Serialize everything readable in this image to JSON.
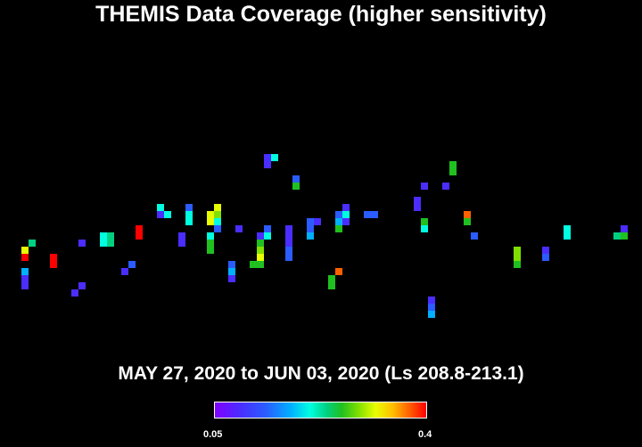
{
  "title": "THEMIS Data Coverage (higher sensitivity)",
  "date_range": "MAY 27, 2020 to JUN 03, 2020 (Ls 208.8-213.1)",
  "colorbar": {
    "min_label": "0.05",
    "max_label": "0.4",
    "colors": [
      "#8000ff",
      "#4a2dff",
      "#2a5cff",
      "#00b0ff",
      "#00ffe0",
      "#00d080",
      "#20c020",
      "#80e000",
      "#e8ff00",
      "#ffc000",
      "#ff6000",
      "#ff0000"
    ]
  }
}
